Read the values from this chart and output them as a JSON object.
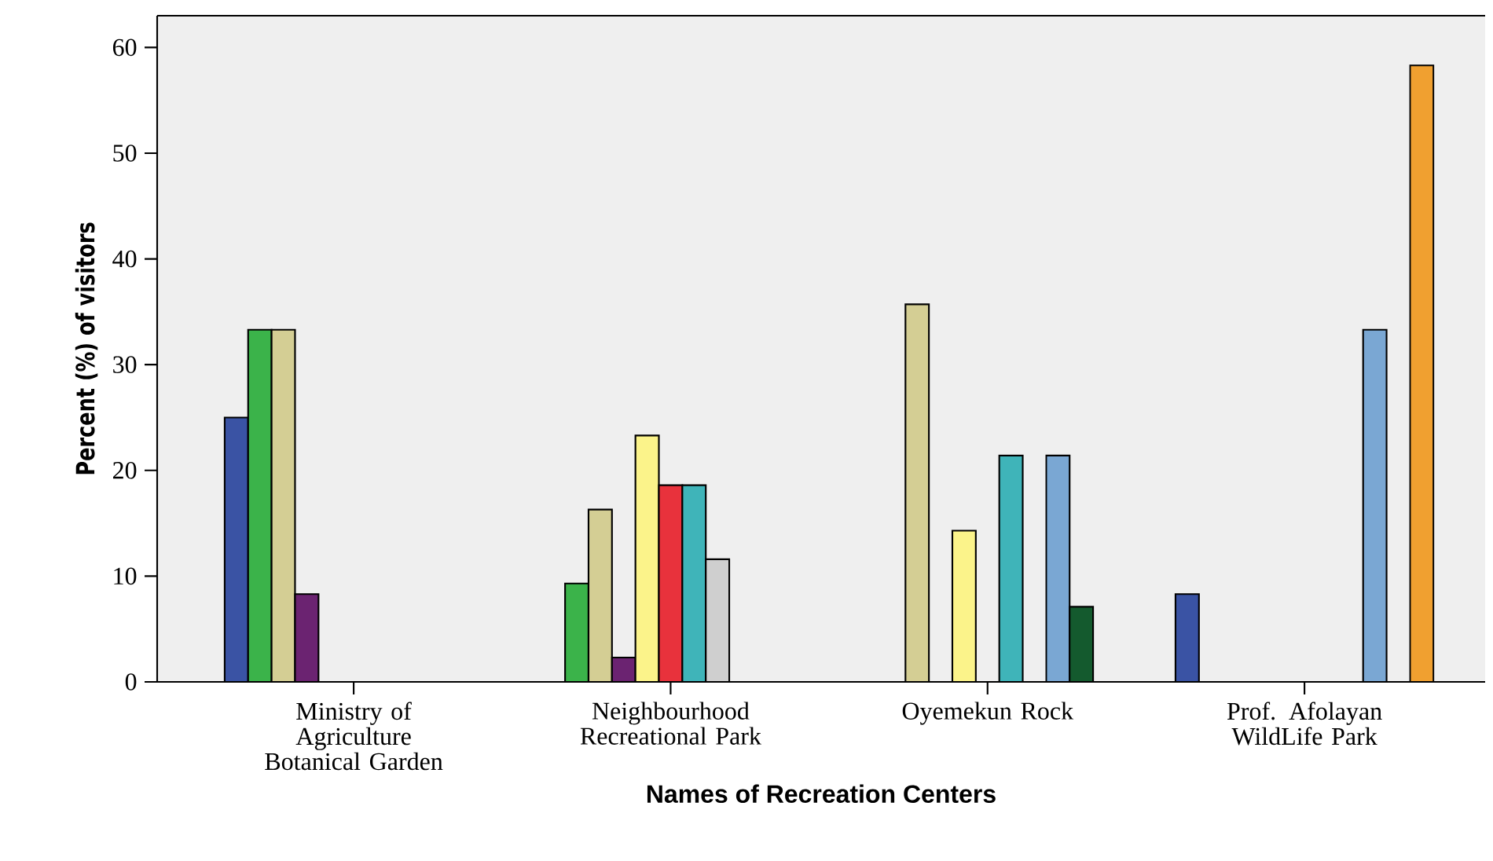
{
  "chart_data": {
    "type": "bar",
    "xlabel": "Names of Recreation Centers",
    "ylabel": "Percent (%) of visitors",
    "categories": [
      "Ministry of Agriculture Botanical Garden",
      "Neighbourhood Recreational Park",
      "Oyemekun Rock",
      "Prof. Afolayan WildLife Park"
    ],
    "ylim": [
      0,
      63
    ],
    "yticks": [
      0,
      10,
      20,
      30,
      40,
      50,
      60
    ],
    "grid": false,
    "series": [
      {
        "color": "#3a53a4",
        "values": [
          25,
          null,
          null,
          8.3
        ]
      },
      {
        "color": "#3bb34a",
        "values": [
          33.3,
          9.3,
          null,
          null
        ]
      },
      {
        "color": "#d4ce94",
        "values": [
          33.3,
          16.3,
          35.7,
          null
        ]
      },
      {
        "color": "#6b2371",
        "values": [
          8.3,
          2.3,
          null,
          null
        ]
      },
      {
        "color": "#fbf38a",
        "values": [
          null,
          23.3,
          14.3,
          null
        ]
      },
      {
        "color": "#e8323c",
        "values": [
          null,
          18.6,
          null,
          null
        ]
      },
      {
        "color": "#3fb4b9",
        "values": [
          null,
          18.6,
          21.4,
          null
        ]
      },
      {
        "color": "#cfcfcf",
        "values": [
          null,
          11.6,
          null,
          null
        ]
      },
      {
        "color": "#7aa7d3",
        "values": [
          null,
          null,
          21.4,
          33.3
        ]
      },
      {
        "color": "#145a2e",
        "values": [
          null,
          null,
          7.1,
          null
        ]
      },
      {
        "color": "#f0a030",
        "values": [
          null,
          null,
          null,
          58.3
        ]
      }
    ]
  }
}
